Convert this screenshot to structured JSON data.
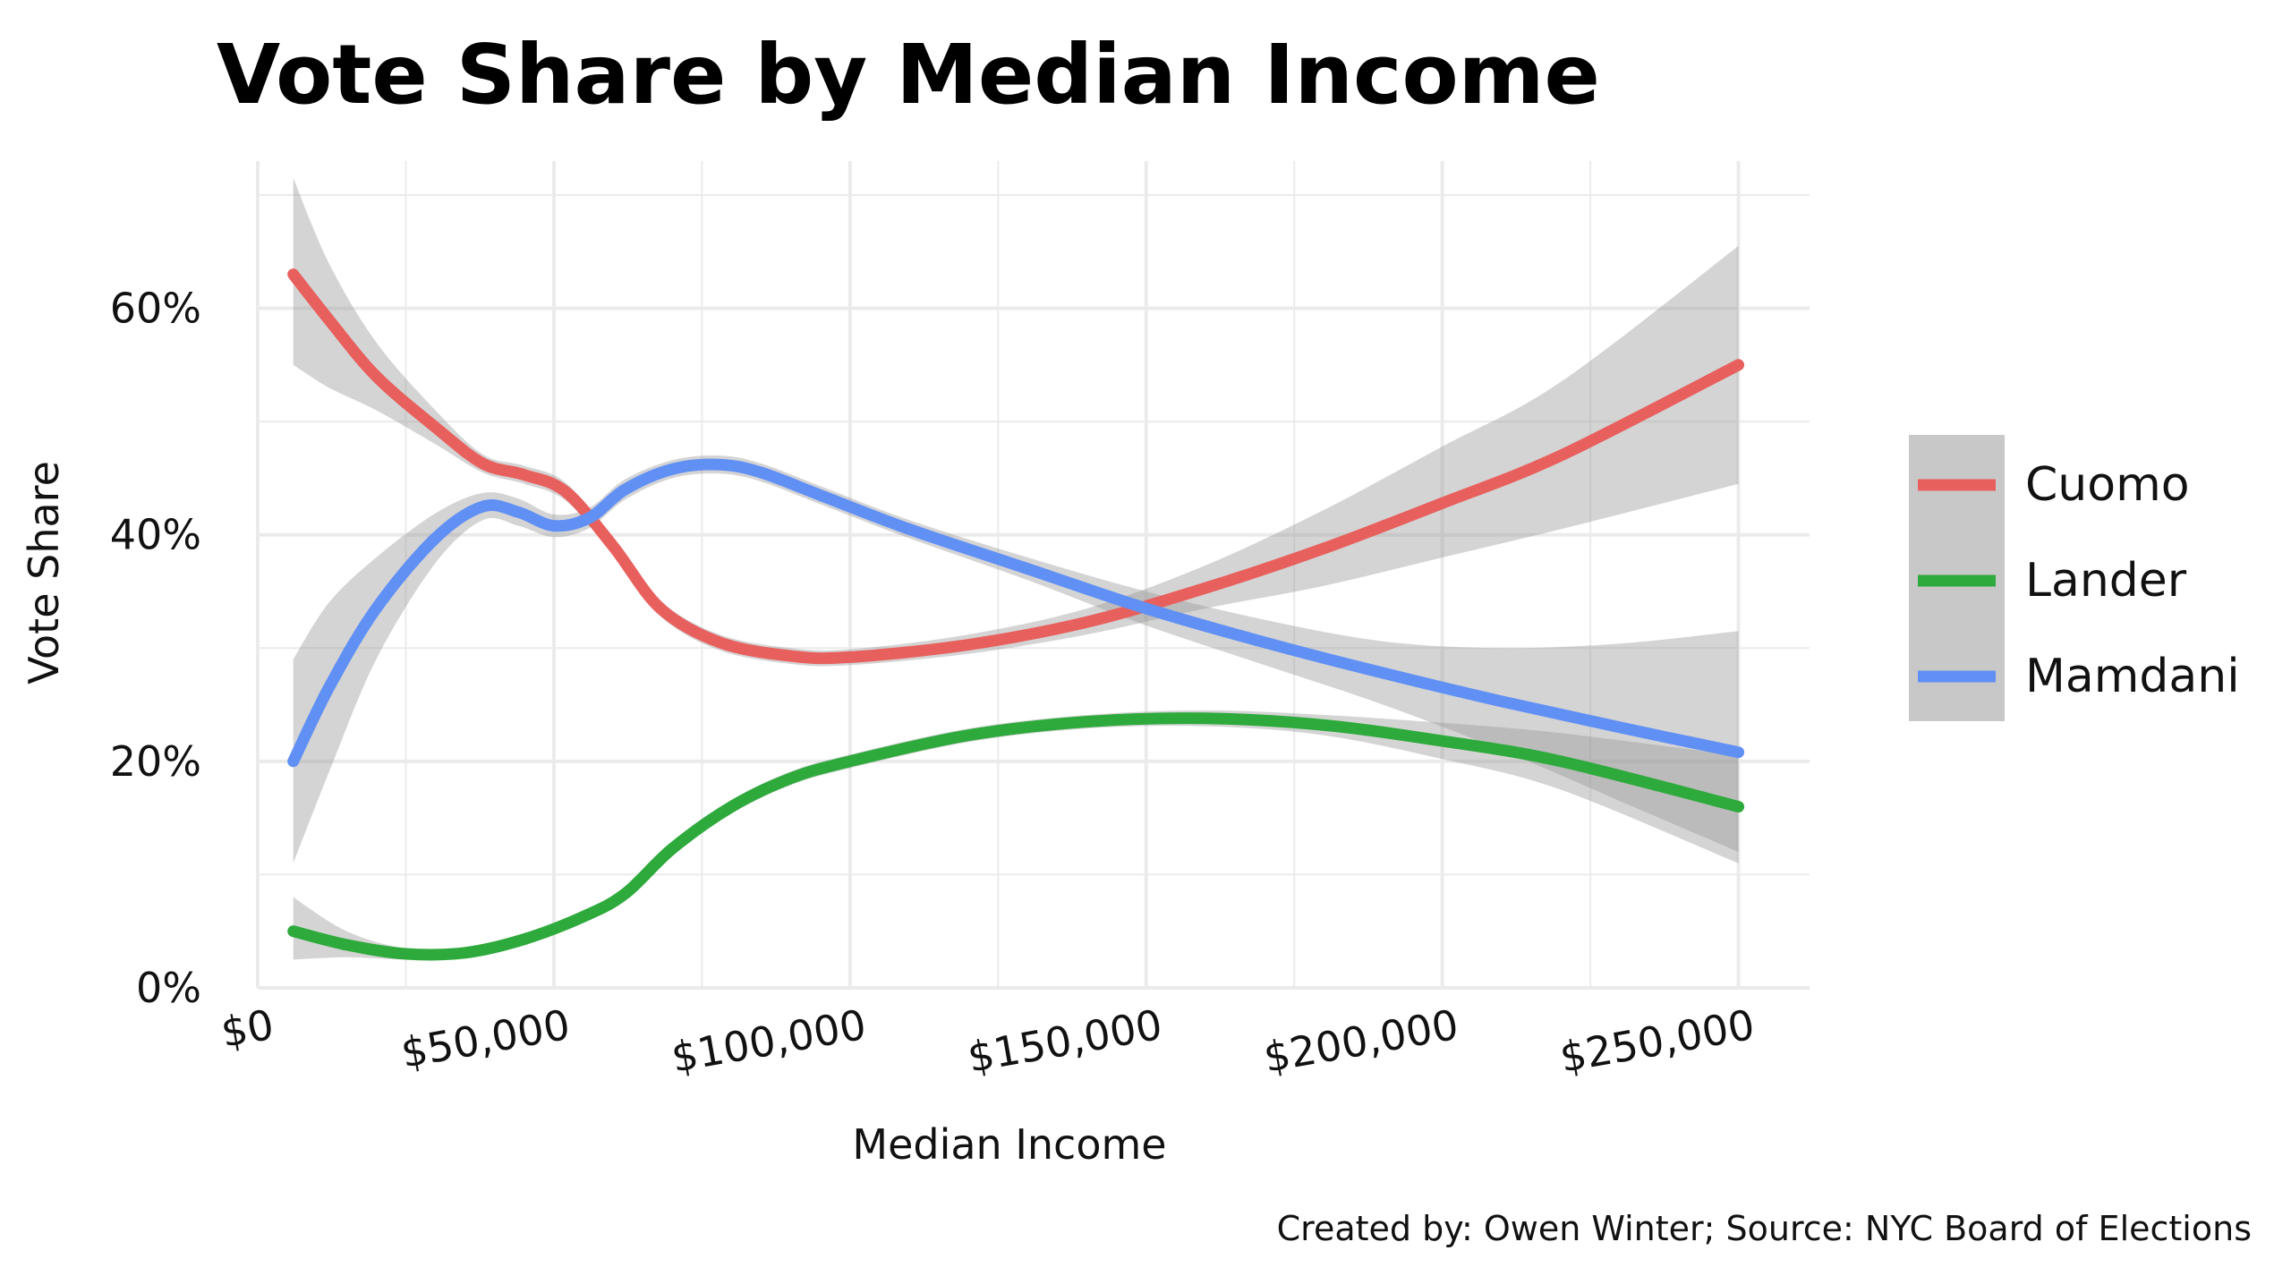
{
  "chart_data": {
    "type": "line",
    "title": "Vote Share by Median Income",
    "xlabel": "Median Income",
    "ylabel": "Vote Share",
    "caption": "Created by: Owen Winter; Source: NYC Board of Elections",
    "xlim": [
      0,
      262000
    ],
    "ylim": [
      0,
      73
    ],
    "x_ticks": [
      0,
      50000,
      100000,
      150000,
      200000,
      250000
    ],
    "x_tick_labels": [
      "$0",
      "$50,000",
      "$100,000",
      "$150,000",
      "$200,000",
      "$250,000"
    ],
    "y_ticks": [
      0,
      20,
      40,
      60
    ],
    "y_tick_labels": [
      "0%",
      "20%",
      "40%",
      "60%"
    ],
    "grid": true,
    "legend_position": "right",
    "confidence_bands": true,
    "series": [
      {
        "name": "Cuomo",
        "color": "#E8605E",
        "x": [
          6000,
          12000,
          20000,
          30000,
          38000,
          45000,
          52000,
          60000,
          68000,
          78000,
          90000,
          100000,
          120000,
          140000,
          160000,
          180000,
          200000,
          220000,
          250000
        ],
        "y": [
          63,
          59,
          54,
          49.5,
          46.3,
          45.3,
          43.8,
          39,
          33.5,
          30.5,
          29.3,
          29.2,
          30.3,
          32.3,
          35.3,
          38.8,
          42.8,
          47,
          55
        ],
        "lower": [
          55,
          53,
          51,
          48,
          45.5,
          44.5,
          43,
          38.3,
          32.8,
          29.8,
          28.6,
          28.5,
          29.5,
          31.2,
          33.5,
          35.5,
          38,
          40.5,
          44.5
        ],
        "upper": [
          71.5,
          64,
          57,
          51,
          47.1,
          46.1,
          44.6,
          39.7,
          34.2,
          31.2,
          30,
          29.9,
          31.2,
          33.5,
          37.3,
          42.2,
          47.8,
          53.5,
          65.5
        ]
      },
      {
        "name": "Lander",
        "color": "#2EAA3C",
        "x": [
          6000,
          15000,
          25000,
          35000,
          45000,
          55000,
          62000,
          70000,
          80000,
          90000,
          100000,
          120000,
          140000,
          160000,
          180000,
          200000,
          220000,
          250000
        ],
        "y": [
          5,
          3.8,
          3,
          3.1,
          4.3,
          6.3,
          8.3,
          12.3,
          16,
          18.5,
          20,
          22.3,
          23.5,
          23.8,
          23.2,
          21.8,
          20,
          16
        ],
        "lower": [
          2.5,
          2.7,
          2.5,
          2.7,
          3.9,
          5.9,
          7.8,
          11.8,
          15.4,
          17.9,
          19.4,
          21.7,
          22.9,
          23.1,
          22.3,
          20.2,
          17.5,
          11
        ],
        "upper": [
          8,
          5,
          3.5,
          3.5,
          4.7,
          6.7,
          8.8,
          12.8,
          16.6,
          19.1,
          20.6,
          22.9,
          24.1,
          24.5,
          24.1,
          23.4,
          22.5,
          20.5
        ]
      },
      {
        "name": "Mamdani",
        "color": "#6190F5",
        "x": [
          6000,
          12000,
          20000,
          30000,
          38000,
          44000,
          50000,
          56000,
          62000,
          70000,
          78000,
          85000,
          95000,
          110000,
          130000,
          150000,
          170000,
          190000,
          210000,
          230000,
          250000
        ],
        "y": [
          20,
          26.5,
          33.5,
          39.7,
          42.5,
          42,
          40.8,
          41.5,
          44,
          45.8,
          46.2,
          45.5,
          43.5,
          40.5,
          37,
          33.5,
          30.5,
          27.8,
          25.3,
          23,
          20.8
        ],
        "lower": [
          11,
          19,
          29,
          37.5,
          41.3,
          40.8,
          39.8,
          40.6,
          43.1,
          45,
          45.4,
          44.7,
          42.7,
          39.7,
          36,
          32,
          28.5,
          25,
          21,
          16.5,
          12
        ],
        "upper": [
          29,
          34,
          38,
          41.9,
          43.7,
          43.2,
          41.8,
          42.4,
          44.9,
          46.6,
          47,
          46.3,
          44.3,
          41.3,
          38,
          35,
          32.5,
          30.6,
          30,
          30.4,
          31.5
        ]
      }
    ]
  }
}
